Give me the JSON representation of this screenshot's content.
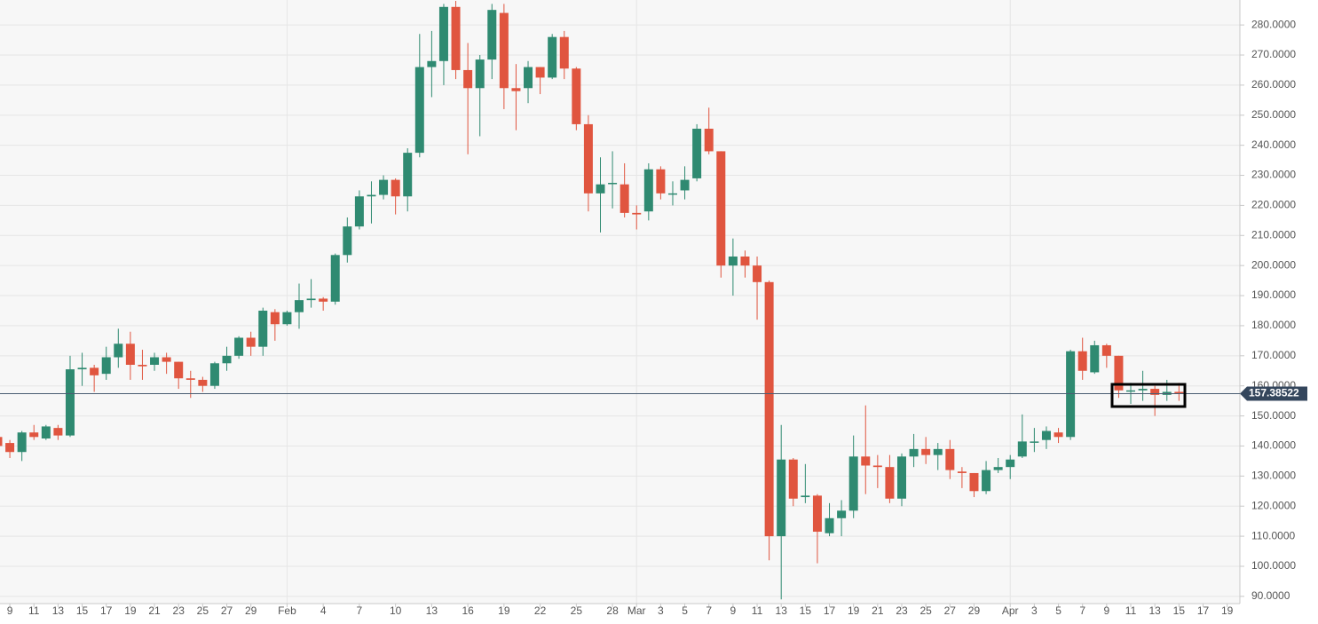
{
  "chart_data": {
    "type": "candlestick",
    "up_color": "#2f8a71",
    "down_color": "#e0553f",
    "grid": true,
    "categories": [
      null,
      "9",
      null,
      "11",
      null,
      "13",
      null,
      "15",
      null,
      "17",
      null,
      "19",
      null,
      "21",
      null,
      "23",
      null,
      "25",
      null,
      "27",
      null,
      "29",
      null,
      null,
      "Feb",
      null,
      null,
      "4",
      null,
      null,
      "7",
      null,
      null,
      "10",
      null,
      null,
      "13",
      null,
      null,
      "16",
      null,
      null,
      "19",
      null,
      null,
      "22",
      null,
      null,
      "25",
      null,
      null,
      "28",
      null,
      "Mar",
      null,
      "3",
      null,
      "5",
      null,
      "7",
      null,
      "9",
      null,
      "11",
      null,
      "13",
      null,
      "15",
      null,
      "17",
      null,
      "19",
      null,
      "21",
      null,
      "23",
      null,
      "25",
      null,
      "27",
      null,
      "29",
      null,
      null,
      "Apr",
      null,
      "3",
      null,
      "5",
      null,
      "7",
      null,
      "9",
      null,
      "11",
      null,
      "13",
      null,
      "15",
      null,
      "17",
      null,
      "19"
    ],
    "open": [
      143,
      141,
      138,
      144.5,
      142.5,
      146,
      143.5,
      165.5,
      166,
      164,
      169.5,
      174,
      167,
      167,
      169.5,
      168,
      162.5,
      162,
      160,
      167.5,
      170,
      176,
      173,
      184.5,
      180.5,
      184.5,
      188.5,
      189,
      188,
      203.5,
      213,
      223,
      223.5,
      228.5,
      223,
      237.5,
      266,
      268,
      286,
      265,
      259,
      268.5,
      284,
      259,
      259,
      266,
      262.5,
      276,
      265.5,
      247,
      224,
      227.5,
      227,
      217.5,
      218,
      232,
      224,
      225,
      229,
      245.5,
      238,
      200,
      203,
      200,
      194.5,
      110,
      135.5,
      123,
      123.5,
      111,
      116,
      118.5,
      136.5,
      133.5,
      133,
      122.5,
      136.5,
      139,
      137,
      139,
      131.5,
      131,
      125,
      132,
      133,
      136.5,
      141.5,
      142,
      144.5,
      143,
      171.5,
      164.5,
      173.5,
      170,
      158.5,
      158.5,
      159,
      157,
      158,
      null,
      null,
      null,
      null
    ],
    "high": [
      144,
      142,
      145,
      147,
      147,
      147,
      170,
      171,
      167,
      173,
      179,
      178,
      172,
      171,
      171,
      168,
      165,
      163,
      168,
      173,
      176.5,
      178,
      186,
      185.5,
      185,
      194,
      195.5,
      189.5,
      204,
      216,
      225,
      228,
      230,
      229,
      239,
      277,
      278,
      287,
      288,
      274,
      270,
      287,
      287,
      267,
      268,
      266,
      277,
      278,
      266,
      250,
      236,
      238,
      234,
      220,
      234,
      233,
      228,
      233,
      247,
      252.5,
      238,
      209,
      205,
      203,
      195,
      147,
      136,
      134,
      124,
      121,
      122,
      143.5,
      153.5,
      137,
      137,
      137.5,
      144,
      143,
      141,
      142,
      133,
      131,
      135,
      136,
      137,
      150.5,
      146,
      146.5,
      146,
      172,
      176,
      175,
      174,
      170,
      161,
      165,
      160,
      162,
      161,
      null,
      null,
      null,
      null
    ],
    "low": [
      139,
      136,
      135,
      142,
      142,
      142,
      143,
      160,
      158,
      162,
      166,
      162,
      162,
      165,
      164,
      159,
      156,
      158,
      159,
      165,
      169,
      170,
      170,
      175,
      180,
      179,
      186,
      185,
      187,
      201,
      212,
      214,
      222,
      217,
      218,
      236,
      256,
      260,
      262,
      237,
      243,
      262,
      252,
      245,
      254,
      257,
      262,
      262,
      245,
      218,
      211,
      219,
      216,
      212,
      215,
      222,
      220,
      222,
      228,
      237,
      196,
      190,
      196,
      182,
      102,
      89,
      120,
      121,
      101,
      110,
      110,
      116,
      124,
      126,
      121,
      120,
      133,
      134,
      132,
      129,
      126,
      123,
      124,
      131,
      129,
      136,
      138,
      139,
      141,
      142,
      162,
      164,
      166,
      156,
      154,
      155,
      150,
      155,
      155,
      null,
      null,
      null,
      null
    ],
    "close": [
      140,
      138,
      144.5,
      143,
      146.5,
      143.5,
      165.5,
      166,
      163.5,
      169.5,
      174,
      167,
      166.5,
      169.5,
      168,
      162.5,
      162,
      160,
      167.5,
      170,
      176,
      173,
      185,
      180.5,
      184.5,
      188.5,
      189,
      188,
      203.5,
      213,
      223,
      223.5,
      228.5,
      223,
      237.5,
      266,
      268,
      286,
      265,
      259,
      268.5,
      285,
      259,
      258,
      266,
      262.5,
      276,
      265.5,
      247,
      224,
      227,
      227.5,
      217.5,
      217,
      232,
      224,
      224,
      228.5,
      245.5,
      238,
      200,
      203,
      200,
      194.5,
      110,
      135.5,
      122.5,
      123.5,
      111.5,
      116,
      118.5,
      136.5,
      133.5,
      133,
      122.5,
      136.5,
      139,
      137,
      139,
      132,
      131,
      125,
      132,
      133,
      135.5,
      141.5,
      141.5,
      145,
      143,
      171.5,
      165,
      173.5,
      170,
      158.5,
      158.5,
      159,
      157,
      158,
      157.38522,
      null,
      null,
      null,
      null
    ],
    "last_price": 157.38522,
    "ylim": [
      87.6,
      288.3
    ],
    "yticks": [
      {
        "value": 90,
        "label": "90.0000"
      },
      {
        "value": 100,
        "label": "100.0000"
      },
      {
        "value": 110,
        "label": "110.0000"
      },
      {
        "value": 120,
        "label": "120.0000"
      },
      {
        "value": 130,
        "label": "130.0000"
      },
      {
        "value": 140,
        "label": "140.0000"
      },
      {
        "value": 150,
        "label": "150.0000"
      },
      {
        "value": 160,
        "label": "160.0000"
      },
      {
        "value": 170,
        "label": "170.0000"
      },
      {
        "value": 180,
        "label": "180.0000"
      },
      {
        "value": 190,
        "label": "190.0000"
      },
      {
        "value": 200,
        "label": "200.0000"
      },
      {
        "value": 210,
        "label": "210.0000"
      },
      {
        "value": 220,
        "label": "220.0000"
      },
      {
        "value": 230,
        "label": "230.0000"
      },
      {
        "value": 240,
        "label": "240.0000"
      },
      {
        "value": 250,
        "label": "250.0000"
      },
      {
        "value": 260,
        "label": "260.0000"
      },
      {
        "value": 270,
        "label": "270.0000"
      },
      {
        "value": 280,
        "label": "280.0000"
      }
    ]
  }
}
